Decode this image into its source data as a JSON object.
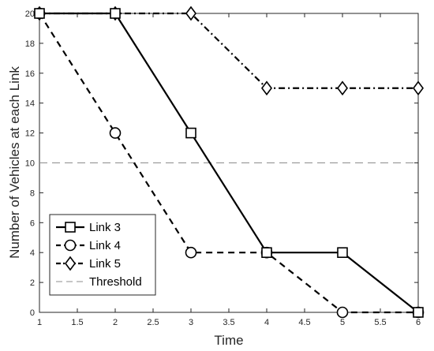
{
  "chart_data": {
    "type": "line",
    "xlabel": "Time",
    "ylabel": "Number of Vehicles at each Link",
    "xlim": [
      1,
      6
    ],
    "ylim": [
      0,
      20
    ],
    "xticks": [
      1,
      1.5,
      2,
      2.5,
      3,
      3.5,
      4,
      4.5,
      5,
      5.5,
      6
    ],
    "xtick_labels": [
      "1",
      "1.5",
      "2",
      "2.5",
      "3",
      "3.5",
      "4",
      "4.5",
      "5",
      "5.5",
      "6"
    ],
    "yticks": [
      0,
      2,
      4,
      6,
      8,
      10,
      12,
      14,
      16,
      18,
      20
    ],
    "ytick_labels": [
      "0",
      "2",
      "4",
      "6",
      "8",
      "10",
      "12",
      "14",
      "16",
      "18",
      "20"
    ],
    "grid": false,
    "legend_position": "bottom-left",
    "x": [
      1,
      2,
      3,
      4,
      5,
      6
    ],
    "series": [
      {
        "name": "Link 3",
        "marker": "square",
        "line_style": "solid",
        "color": "#000000",
        "values": [
          20,
          20,
          12,
          4,
          4,
          0
        ]
      },
      {
        "name": "Link 4",
        "marker": "circle",
        "line_style": "dashed",
        "color": "#000000",
        "values": [
          20,
          12,
          4,
          4,
          0,
          0
        ]
      },
      {
        "name": "Link 5",
        "marker": "diamond",
        "line_style": "dashdot",
        "color": "#000000",
        "values": [
          20,
          20,
          20,
          15,
          15,
          15
        ]
      }
    ],
    "threshold": {
      "name": "Threshold",
      "value": 10,
      "line_style": "dashed",
      "color": "#8c8c8c"
    }
  }
}
